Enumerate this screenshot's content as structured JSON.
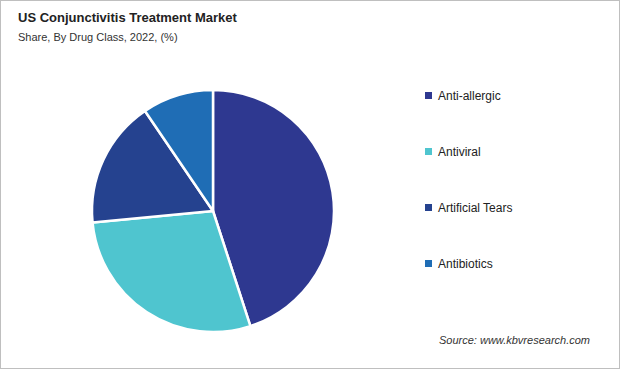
{
  "chart_data": {
    "type": "pie",
    "title": "US Conjunctivitis Treatment Market",
    "subtitle": "Share, By Drug Class, 2022, (%)",
    "categories": [
      "Anti-allergic",
      "Antiviral",
      "Artificial Tears",
      "Antibiotics"
    ],
    "values": [
      45,
      28.5,
      17,
      9.5
    ],
    "colors": [
      "#2e3890",
      "#4fc5cf",
      "#25428f",
      "#1f6db5"
    ],
    "legend": "right",
    "annotations": [
      "Source: www.kbvresearch.com"
    ]
  }
}
